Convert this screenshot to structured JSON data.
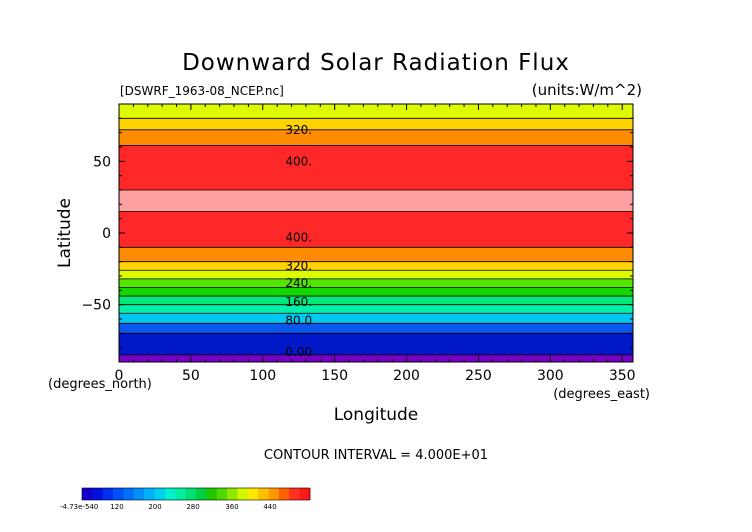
{
  "chart_data": {
    "type": "heatmap",
    "title": "Downward Solar Radiation Flux",
    "source_label": "[DSWRF_1963-08_NCEP.nc]",
    "units_label": "(units:W/m^2)",
    "xlabel": "Longitude",
    "ylabel": "Latitude",
    "x_unit_label": "(degrees_east)",
    "y_unit_label": "(degrees_north)",
    "xlim": [
      0,
      357.5
    ],
    "ylim": [
      -90,
      90
    ],
    "x_ticks": [
      0,
      50,
      100,
      150,
      200,
      250,
      300,
      350
    ],
    "y_ticks": [
      -50,
      0,
      50
    ],
    "contour_interval_text": "CONTOUR INTERVAL = 4.000E+01",
    "bands": [
      {
        "lat_from": -90,
        "lat_to": -85,
        "color": "#7a00c8"
      },
      {
        "lat_from": -85,
        "lat_to": -70,
        "color": "#0018c8"
      },
      {
        "lat_from": -70,
        "lat_to": -63,
        "color": "#0a58f0"
      },
      {
        "lat_from": -63,
        "lat_to": -56,
        "color": "#00c8f0"
      },
      {
        "lat_from": -56,
        "lat_to": -50,
        "color": "#00f0a8"
      },
      {
        "lat_from": -50,
        "lat_to": -44,
        "color": "#00e878"
      },
      {
        "lat_from": -44,
        "lat_to": -38,
        "color": "#14d600"
      },
      {
        "lat_from": -38,
        "lat_to": -32,
        "color": "#50e600"
      },
      {
        "lat_from": -32,
        "lat_to": -26,
        "color": "#ddfa00"
      },
      {
        "lat_from": -26,
        "lat_to": -20,
        "color": "#ffd200"
      },
      {
        "lat_from": -20,
        "lat_to": -10,
        "color": "#ff8c00"
      },
      {
        "lat_from": -10,
        "lat_to": 15,
        "color": "#ff2828"
      },
      {
        "lat_from": 15,
        "lat_to": 30,
        "color": "#ffa0a0"
      },
      {
        "lat_from": 30,
        "lat_to": 61,
        "color": "#ff2828"
      },
      {
        "lat_from": 61,
        "lat_to": 72,
        "color": "#ff8c00"
      },
      {
        "lat_from": 72,
        "lat_to": 80,
        "color": "#ffd200"
      },
      {
        "lat_from": 80,
        "lat_to": 90,
        "color": "#ddfa00"
      }
    ],
    "contour_lines": [
      -85,
      -70,
      -63,
      -56,
      -50,
      -44,
      -38,
      -32,
      -26,
      -20,
      -10,
      15,
      30,
      61,
      72,
      80
    ],
    "contour_labels": [
      {
        "text": "320.",
        "lat": 72
      },
      {
        "text": "400.",
        "lat": 50
      },
      {
        "text": "400.",
        "lat": -3
      },
      {
        "text": "320.",
        "lat": -23
      },
      {
        "text": "240.",
        "lat": -35
      },
      {
        "text": "160.",
        "lat": -48
      },
      {
        "text": "80.0",
        "lat": -61
      },
      {
        "text": "0.00",
        "lat": -83
      }
    ],
    "label_longitude": 125,
    "colorbar": {
      "labels": [
        "-4.73e-540",
        "120",
        "200",
        "280",
        "360",
        "440"
      ],
      "colors": [
        "#1400c8",
        "#0010e0",
        "#0030f0",
        "#0050f8",
        "#0070f8",
        "#0090f8",
        "#00b0f8",
        "#00d0f0",
        "#00f0d0",
        "#00f0a0",
        "#00e070",
        "#00d040",
        "#20c800",
        "#50d800",
        "#90e800",
        "#d0f800",
        "#ffe800",
        "#ffc000",
        "#ff9800",
        "#ff6000",
        "#ff3020",
        "#ff1818"
      ]
    }
  }
}
